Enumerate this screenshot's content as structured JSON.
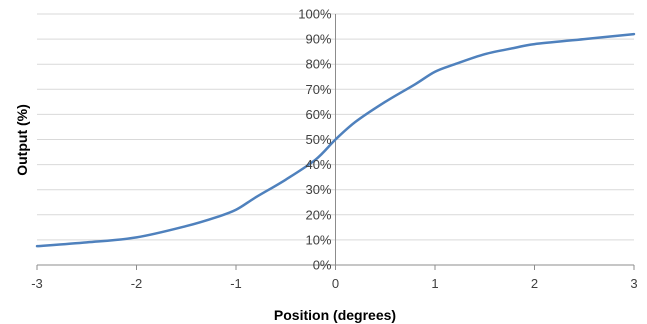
{
  "chart_data": {
    "type": "line",
    "title": "",
    "xlabel": "Position (degrees)",
    "ylabel": "Output (%)",
    "xlim": [
      -3,
      3
    ],
    "ylim": [
      0,
      100
    ],
    "x_ticks": [
      -3,
      -2,
      -1,
      0,
      1,
      2,
      3
    ],
    "x_tick_labels": [
      "-3",
      "-2",
      "-1",
      "0",
      "1",
      "2",
      "3"
    ],
    "y_ticks": [
      0,
      10,
      20,
      30,
      40,
      50,
      60,
      70,
      80,
      90,
      100
    ],
    "y_tick_labels": [
      "0%",
      "10%",
      "20%",
      "30%",
      "40%",
      "50%",
      "60%",
      "70%",
      "80%",
      "90%",
      "100%"
    ],
    "grid": true,
    "legend": "none",
    "series": [
      {
        "color": "#4f81bd",
        "x": [
          -3,
          -2.5,
          -2,
          -1.5,
          -1.2,
          -1,
          -0.8,
          -0.5,
          -0.2,
          0,
          0.2,
          0.5,
          0.8,
          1,
          1.2,
          1.5,
          1.8,
          2,
          2.5,
          3
        ],
        "y": [
          7.5,
          9,
          11,
          15.5,
          19,
          22,
          27,
          34,
          42,
          50,
          57,
          65,
          72,
          77,
          80,
          84,
          86.5,
          88,
          90,
          92
        ]
      }
    ]
  }
}
